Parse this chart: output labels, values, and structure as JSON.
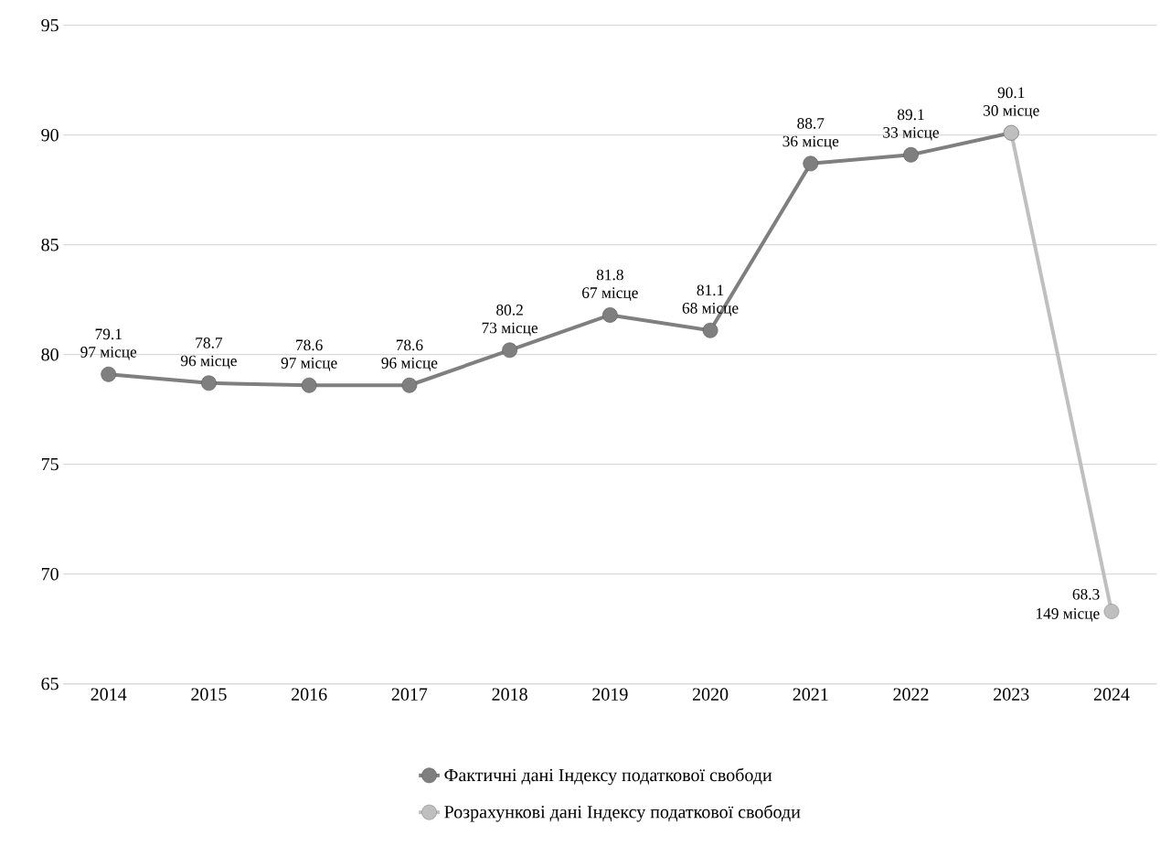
{
  "chart_data": {
    "type": "line",
    "categories": [
      "2014",
      "2015",
      "2016",
      "2017",
      "2018",
      "2019",
      "2020",
      "2021",
      "2022",
      "2023",
      "2024"
    ],
    "series": [
      {
        "name": "Фактичні дані Індексу податкової свободи",
        "color": "#7f7f7f",
        "values": [
          79.1,
          78.7,
          78.6,
          78.6,
          80.2,
          81.8,
          81.1,
          88.7,
          89.1,
          90.1,
          null
        ],
        "value_labels": [
          "79.1",
          "78.7",
          "78.6",
          "78.6",
          "80.2",
          "81.8",
          "81.1",
          "88.7",
          "89.1",
          "90.1",
          null
        ]
      },
      {
        "name": "Розрахункові дані Індексу податкової свободи",
        "color": "#bfbfbf",
        "values": [
          null,
          null,
          null,
          null,
          null,
          null,
          null,
          null,
          null,
          90.1,
          68.3
        ],
        "value_labels": [
          null,
          null,
          null,
          null,
          null,
          null,
          null,
          null,
          null,
          null,
          "68.3"
        ]
      }
    ],
    "annotations": [
      {
        "text": "97 місце",
        "x": "2014",
        "y": 79.1
      },
      {
        "text": "96 місце",
        "x": "2015",
        "y": 78.7
      },
      {
        "text": "97 місце",
        "x": "2016",
        "y": 78.6
      },
      {
        "text": "96 місце",
        "x": "2017",
        "y": 78.6
      },
      {
        "text": "73 місце",
        "x": "2018",
        "y": 80.2
      },
      {
        "text": "67 місце",
        "x": "2019",
        "y": 81.8
      },
      {
        "text": "68 місце",
        "x": "2020",
        "y": 81.1
      },
      {
        "text": "36 місце",
        "x": "2021",
        "y": 88.7
      },
      {
        "text": "33 місце",
        "x": "2022",
        "y": 89.1
      },
      {
        "text": "30 місце",
        "x": "2023",
        "y": 90.1
      },
      {
        "text": "149 місце",
        "x": "2024",
        "y": 68.3
      }
    ],
    "ylim": [
      65,
      95
    ],
    "yticks": [
      65,
      70,
      75,
      80,
      85,
      90,
      95
    ],
    "grid": "y",
    "legend": "bottom",
    "marker": "circle",
    "line_style": "solid"
  }
}
